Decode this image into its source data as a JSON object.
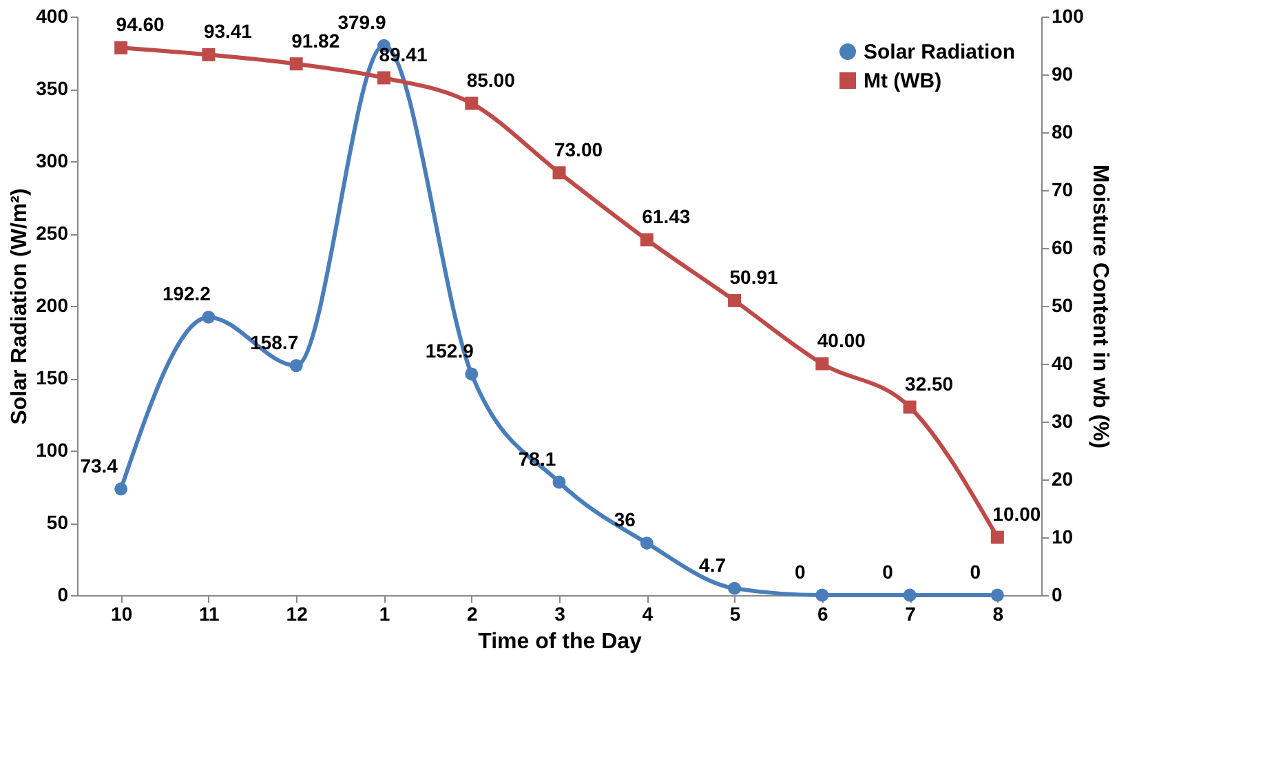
{
  "chart_data": {
    "type": "line",
    "xlabel": "Time of the Day",
    "ylabel": "Solar Radiation (W/m²)",
    "y2label": "Moisture Content in wb (%)",
    "categories": [
      "10",
      "11",
      "12",
      "1",
      "2",
      "3",
      "4",
      "5",
      "6",
      "7",
      "8"
    ],
    "series": [
      {
        "name": "Solar Radiation",
        "color": "#4a7ebb",
        "marker": "circle",
        "values": [
          73.4,
          192.2,
          158.7,
          379.9,
          152.9,
          78.1,
          36,
          4.7,
          0,
          0,
          0
        ],
        "value_labels": [
          "73.4",
          "192.2",
          "158.7",
          "379.9",
          "152.9",
          "78.1",
          "36",
          "4.7",
          "0",
          "0",
          "0"
        ]
      },
      {
        "name": "Mt (WB)",
        "color": "#be4b48",
        "marker": "square",
        "axis": "y2",
        "values": [
          94.6,
          93.41,
          91.82,
          89.41,
          85.0,
          73.0,
          61.43,
          50.91,
          40.0,
          32.5,
          10.0
        ],
        "value_labels": [
          "94.60",
          "93.41",
          "91.82",
          "89.41",
          "85.00",
          "73.00",
          "61.43",
          "50.91",
          "40.00",
          "32.50",
          "10.00"
        ]
      }
    ],
    "ylim": [
      0,
      400
    ],
    "yticks": [
      0,
      50,
      100,
      150,
      200,
      250,
      300,
      350,
      400
    ],
    "y2lim": [
      0,
      100
    ],
    "y2ticks": [
      0,
      10,
      20,
      30,
      40,
      50,
      60,
      70,
      80,
      90,
      100
    ],
    "grid": false,
    "legend": "top right",
    "line_style": "solid"
  }
}
